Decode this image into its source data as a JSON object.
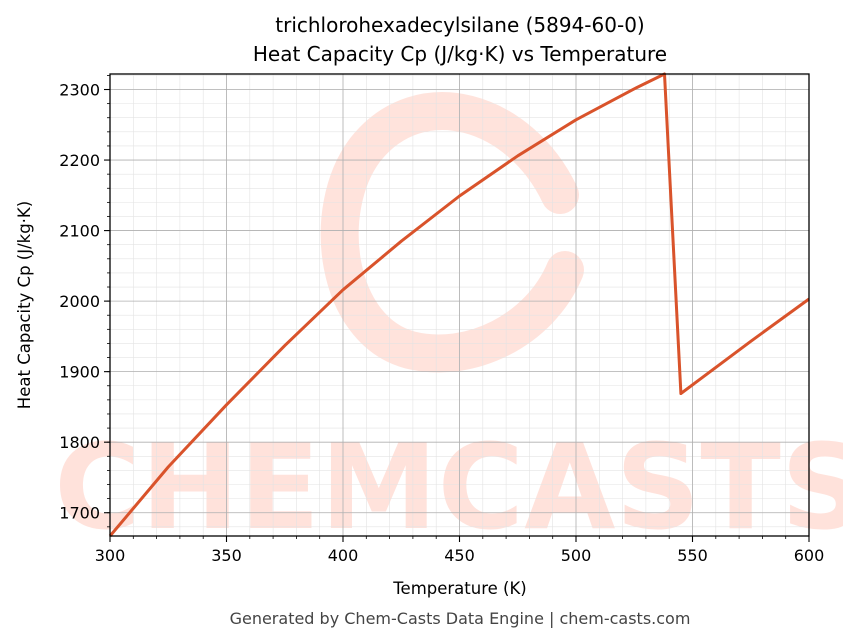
{
  "chart_data": {
    "type": "line",
    "title": [
      "trichlorohexadecylsilane (5894-60-0)",
      "Heat Capacity Cp (J/kg·K) vs Temperature"
    ],
    "xlabel": "Temperature (K)",
    "ylabel": "Heat Capacity Cp (J/kg·K)",
    "xlim": [
      300,
      600
    ],
    "ylim": [
      1667,
      2322
    ],
    "xticks": [
      300,
      350,
      400,
      450,
      500,
      550,
      600
    ],
    "yticks": [
      1700,
      1800,
      1900,
      2000,
      2100,
      2200,
      2300
    ],
    "grid": true,
    "legend": "none",
    "series": [
      {
        "color": "#d9532b",
        "x": [
          300,
          325,
          350,
          375,
          400,
          425,
          450,
          475,
          500,
          525,
          538,
          545,
          575,
          600
        ],
        "y": [
          1667,
          1765,
          1853,
          1937,
          2016,
          2085,
          2149,
          2206,
          2257,
          2301,
          2322,
          1869,
          1943,
          2003
        ]
      }
    ]
  },
  "watermark": {
    "text": "CHEMCASTS",
    "color": "#ffd9d0"
  },
  "footer": "Generated by Chem-Casts Data Engine | chem-casts.com"
}
